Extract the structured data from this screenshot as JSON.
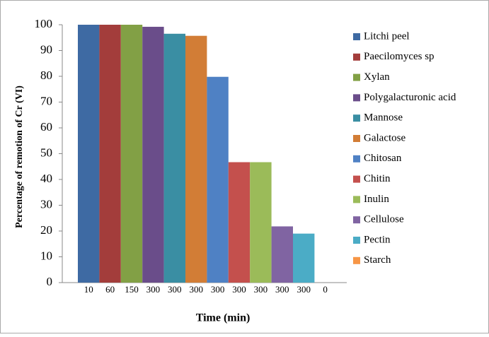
{
  "chart_data": {
    "type": "bar",
    "x_label": "Time (min)",
    "y_label": "Percentage of remotion of Cr (VI)",
    "categories": [
      "10",
      "60",
      "150",
      "300",
      "300",
      "300",
      "300",
      "300",
      "300",
      "300",
      "300",
      "0"
    ],
    "series": [
      {
        "name": "Litchi peel",
        "color": "#3e6aa3",
        "values": [
          100,
          null,
          null,
          null,
          null,
          null,
          null,
          null,
          null,
          null,
          null,
          null
        ]
      },
      {
        "name": "Paecilomyces sp",
        "color": "#a33d3b",
        "values": [
          null,
          100,
          null,
          null,
          null,
          null,
          null,
          null,
          null,
          null,
          null,
          null
        ]
      },
      {
        "name": "Xylan",
        "color": "#82a045",
        "values": [
          null,
          null,
          100,
          null,
          null,
          null,
          null,
          null,
          null,
          null,
          null,
          null
        ]
      },
      {
        "name": "Polygalacturonic acid",
        "color": "#6a4d8a",
        "values": [
          null,
          null,
          null,
          99.2,
          null,
          null,
          null,
          null,
          null,
          null,
          null,
          null
        ]
      },
      {
        "name": "Mannose",
        "color": "#3a8ea3",
        "values": [
          null,
          null,
          null,
          null,
          96.5,
          null,
          null,
          null,
          null,
          null,
          null,
          null
        ]
      },
      {
        "name": "Galactose",
        "color": "#d27d36",
        "values": [
          null,
          null,
          null,
          null,
          null,
          95.7,
          null,
          null,
          null,
          null,
          null,
          null
        ]
      },
      {
        "name": "Chitosan",
        "color": "#4f81c4",
        "values": [
          null,
          null,
          null,
          null,
          null,
          null,
          79.8,
          null,
          null,
          null,
          null,
          null
        ]
      },
      {
        "name": "Chitin",
        "color": "#c4504d",
        "values": [
          null,
          null,
          null,
          null,
          null,
          null,
          null,
          46.7,
          null,
          null,
          null,
          null
        ]
      },
      {
        "name": "Inulin",
        "color": "#9bbb59",
        "values": [
          null,
          null,
          null,
          null,
          null,
          null,
          null,
          null,
          46.7,
          null,
          null,
          null
        ]
      },
      {
        "name": "Cellulose",
        "color": "#8064a2",
        "values": [
          null,
          null,
          null,
          null,
          null,
          null,
          null,
          null,
          null,
          21.8,
          null,
          null
        ]
      },
      {
        "name": "Pectin",
        "color": "#4bacc6",
        "values": [
          null,
          null,
          null,
          null,
          null,
          null,
          null,
          null,
          null,
          null,
          19,
          null
        ]
      },
      {
        "name": "Starch",
        "color": "#f79646",
        "values": [
          null,
          null,
          null,
          null,
          null,
          null,
          null,
          null,
          null,
          null,
          null,
          0
        ]
      }
    ],
    "ylim": [
      0,
      100
    ],
    "yticks": [
      0,
      10,
      20,
      30,
      40,
      50,
      60,
      70,
      80,
      90,
      100
    ],
    "grid": false,
    "legend": "right"
  }
}
